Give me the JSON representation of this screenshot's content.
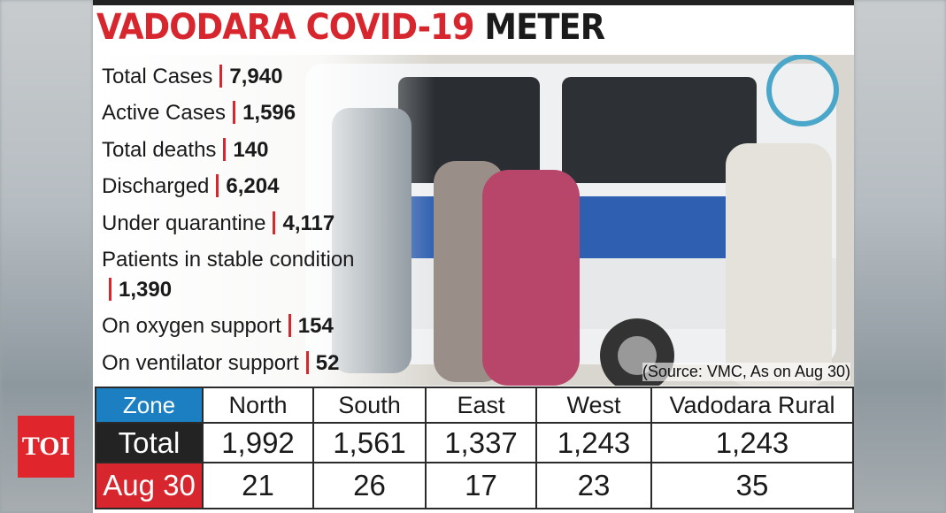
{
  "header": {
    "title_red": "VADODARA COVID-19",
    "title_black": "METER"
  },
  "stats": [
    {
      "label": "Total Cases",
      "value": "7,940"
    },
    {
      "label": "Active Cases",
      "value": "1,596"
    },
    {
      "label": "Total deaths",
      "value": "140"
    },
    {
      "label": "Discharged",
      "value": "6,204"
    },
    {
      "label": "Under quarantine",
      "value": "4,117"
    },
    {
      "label": "Patients in stable condition",
      "value": "1,390"
    },
    {
      "label": "On oxygen support",
      "value": "154"
    },
    {
      "label": "On ventilator support",
      "value": "52"
    }
  ],
  "source": "(Source: VMC, As on Aug 30)",
  "table": {
    "columns": [
      "Zone",
      "North",
      "South",
      "East",
      "West",
      "Vadodara Rural"
    ],
    "rows": [
      [
        "Total",
        "1,992",
        "1,561",
        "1,337",
        "1,243",
        "1,243"
      ],
      [
        "Aug 30",
        "21",
        "26",
        "17",
        "23",
        "35"
      ]
    ]
  },
  "logo": "TOI"
}
